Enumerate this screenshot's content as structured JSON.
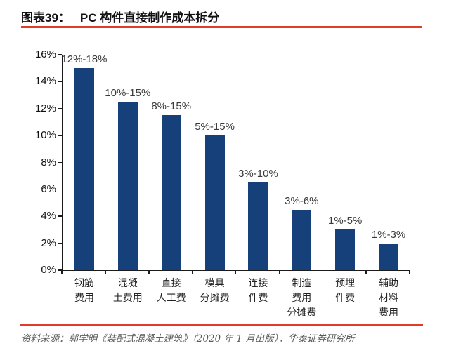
{
  "header": {
    "figure_label": "图表39：",
    "title": "PC 构件直接制作成本拆分"
  },
  "footer": {
    "source": "资料来源：郭学明《装配式混凝土建筑》（2020 年 1 月出版），华泰证券研究所"
  },
  "colors": {
    "accent_red": "#e13b2a",
    "bar_navy": "#15407a",
    "axis_black": "#1a1a1a",
    "source_gray": "#595959"
  },
  "chart_data": {
    "type": "bar",
    "title": "PC 构件直接制作成本拆分",
    "categories": [
      "钢筋费用",
      "混凝土费用",
      "直接人工费",
      "模具分摊费",
      "连接件费",
      "制造费用分摊费",
      "预埋件费",
      "辅助材料费用"
    ],
    "category_lines": [
      [
        "钢筋",
        "费用"
      ],
      [
        "混凝",
        "土费用"
      ],
      [
        "直接",
        "人工费"
      ],
      [
        "模具",
        "分摊费"
      ],
      [
        "连接",
        "件费"
      ],
      [
        "制造",
        "费用",
        "分摊费"
      ],
      [
        "预埋",
        "件费"
      ],
      [
        "辅助",
        "材料",
        "费用"
      ]
    ],
    "values": [
      15,
      12.5,
      11.5,
      10,
      6.5,
      4.5,
      3,
      2
    ],
    "data_labels": [
      "12%-18%",
      "10%-15%",
      "8%-15%",
      "5%-15%",
      "3%-10%",
      "3%-6%",
      "1%-5%",
      "1%-3%"
    ],
    "y_ticks": [
      "0%",
      "2%",
      "4%",
      "6%",
      "8%",
      "10%",
      "12%",
      "14%",
      "16%"
    ],
    "ylim": [
      0,
      16
    ],
    "xlabel": "",
    "ylabel": "",
    "grid": false,
    "legend": "none",
    "bar_color": "#15407a"
  }
}
